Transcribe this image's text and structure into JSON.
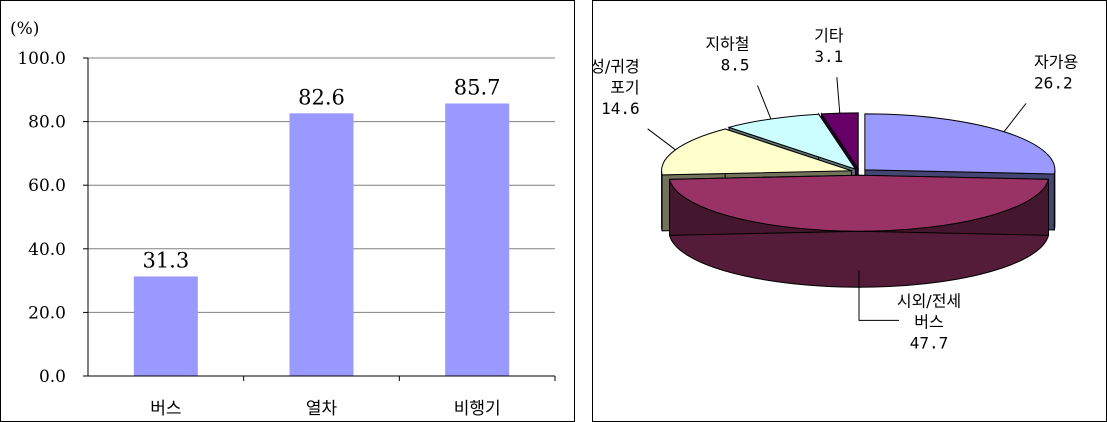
{
  "chart_data": [
    {
      "type": "bar",
      "ylabel": "(%)",
      "categories": [
        "버스",
        "열차",
        "비행기"
      ],
      "values": [
        31.3,
        82.6,
        85.7
      ],
      "value_labels": [
        "31.3",
        "82.6",
        "85.7"
      ],
      "yticks": [
        "0.0",
        "20.0",
        "40.0",
        "60.0",
        "80.0",
        "100.0"
      ],
      "ylim": [
        0,
        100
      ],
      "grid": true,
      "bar_color": "#9999ff"
    },
    {
      "type": "pie",
      "style": "3d",
      "slices": [
        {
          "label_lines": [
            "자가용"
          ],
          "value": 26.2,
          "value_label": "26.2",
          "color": "#9999ff"
        },
        {
          "label_lines": [
            "시외/전세",
            "버스"
          ],
          "value": 47.7,
          "value_label": "47.7",
          "color": "#993366"
        },
        {
          "label_lines": [
            "귀성/귀경",
            "포기"
          ],
          "value": 14.6,
          "value_label": "14.6",
          "color": "#ffffcc"
        },
        {
          "label_lines": [
            "지하철"
          ],
          "value": 8.5,
          "value_label": "8.5",
          "color": "#ccffff"
        },
        {
          "label_lines": [
            "기타"
          ],
          "value": 3.1,
          "value_label": "3.1",
          "color": "#660066"
        }
      ]
    }
  ]
}
